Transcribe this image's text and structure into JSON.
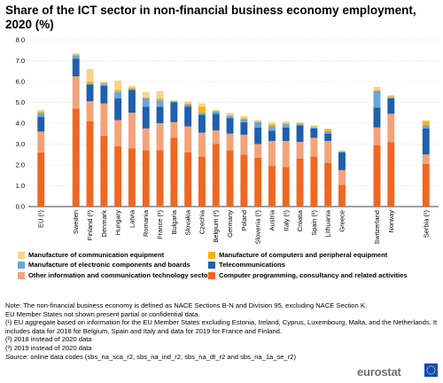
{
  "chart_data": {
    "type": "bar",
    "stacked": true,
    "title": "Share of the ICT sector in non-financial business economy employment, 2020 (%)",
    "xlabel": "",
    "ylabel": "",
    "ylim": [
      0,
      8
    ],
    "yticks": [
      "0.0",
      "1.0",
      "2.0",
      "3.0",
      "4.0",
      "5.0",
      "6.0",
      "7.0",
      "8.0"
    ],
    "grid": true,
    "legend_position": "bottom",
    "categories": [
      "EU (¹)",
      "Sweden",
      "Finland (²)",
      "Denmark",
      "Hungary",
      "Latvia",
      "Romania",
      "France (²)",
      "Bulgaria",
      "Slovakia",
      "Czechia",
      "Belgium (²)",
      "Germany",
      "Poland",
      "Slovenia (²)",
      "Austria",
      "Italy (²)",
      "Croatia",
      "Spain (²)",
      "Lithuania",
      "Greece",
      "Switzerland",
      "Norway",
      "Serbia (²)"
    ],
    "groups": [
      [
        0
      ],
      [
        1,
        20
      ],
      [
        21,
        22
      ],
      [
        23
      ]
    ],
    "series": [
      {
        "name": "Computer programming, consultancy and related activities",
        "color": "#f06722",
        "values": [
          2.6,
          4.7,
          4.1,
          3.4,
          2.9,
          2.8,
          2.7,
          2.7,
          3.3,
          2.6,
          2.4,
          3.0,
          2.7,
          2.5,
          2.35,
          1.95,
          1.9,
          2.3,
          2.4,
          2.1,
          1.05,
          2.95,
          3.1,
          2.05
        ]
      },
      {
        "name": "Other information and communication technology sectors",
        "color": "#f4a378",
        "values": [
          1.0,
          1.55,
          0.95,
          1.55,
          1.25,
          1.7,
          1.05,
          1.3,
          0.75,
          1.25,
          1.15,
          0.65,
          0.8,
          0.95,
          0.65,
          1.2,
          1.25,
          0.8,
          0.9,
          1.05,
          0.7,
          0.85,
          1.35,
          0.45
        ]
      },
      {
        "name": "Telecommunications",
        "color": "#1f5fad",
        "values": [
          0.7,
          0.85,
          0.8,
          0.85,
          1.05,
          1.1,
          1.05,
          0.8,
          0.95,
          0.95,
          0.85,
          0.8,
          0.75,
          0.6,
          0.8,
          0.5,
          0.65,
          0.8,
          0.45,
          0.35,
          0.85,
          0.95,
          0.75,
          1.25
        ]
      },
      {
        "name": "Manufacture of electronic components and boards",
        "color": "#6aa5d9",
        "values": [
          0.2,
          0.15,
          0.05,
          0.1,
          0.3,
          0.05,
          0.4,
          0.3,
          0.05,
          0.1,
          0.1,
          0.1,
          0.1,
          0.15,
          0.25,
          0.2,
          0.15,
          0.05,
          0.05,
          0.1,
          0.05,
          0.8,
          0.05,
          0.15
        ]
      },
      {
        "name": "Manufacture of computers and peripheral equipment",
        "color": "#f5b30f",
        "values": [
          0.05,
          0.05,
          0.1,
          0.05,
          0.1,
          0.05,
          0.05,
          0.1,
          0.02,
          0.05,
          0.3,
          0.05,
          0.05,
          0.05,
          0.05,
          0.1,
          0.05,
          0.05,
          0.05,
          0.1,
          0.02,
          0.05,
          0.05,
          0.2
        ]
      },
      {
        "name": "Manufacture of communication equipment",
        "color": "#f9d38d",
        "values": [
          0.1,
          0.05,
          0.6,
          0.05,
          0.45,
          0.1,
          0.25,
          0.35,
          0.03,
          0.1,
          0.15,
          0.05,
          0.1,
          0.1,
          0.05,
          0.1,
          0.1,
          0.05,
          0.05,
          0.05,
          0.03,
          0.15,
          0.05,
          0.05
        ]
      }
    ],
    "legend_order": [
      5,
      4,
      3,
      2,
      1,
      0
    ]
  },
  "notes": [
    "Note: The non-financial business economy is defined as NACE Sections B-N and Division 95, excluding NACE Section K.",
    "EU Member States not shown present partial or confidential data.",
    "(¹) EU aggregate based on information for the EU Member States excluding  Estonia, Ireland, Cyprus, Luxembourg,  Malta, and the Netherlands. It includes data for 2018 for Belgium, Spain and Italy and data for 2019 for France and Finland.",
    "(²) 2018 instead of 2020 data",
    "(³) 2019 instead of 2020 data"
  ],
  "source_label": "Source:",
  "source_text": " online data codes (sbs_na_sca_r2, sbs_na_ind_r2, sbs_na_dt_r2 and sbs_na_1a_se_r2)",
  "logo_text": "eurostat"
}
